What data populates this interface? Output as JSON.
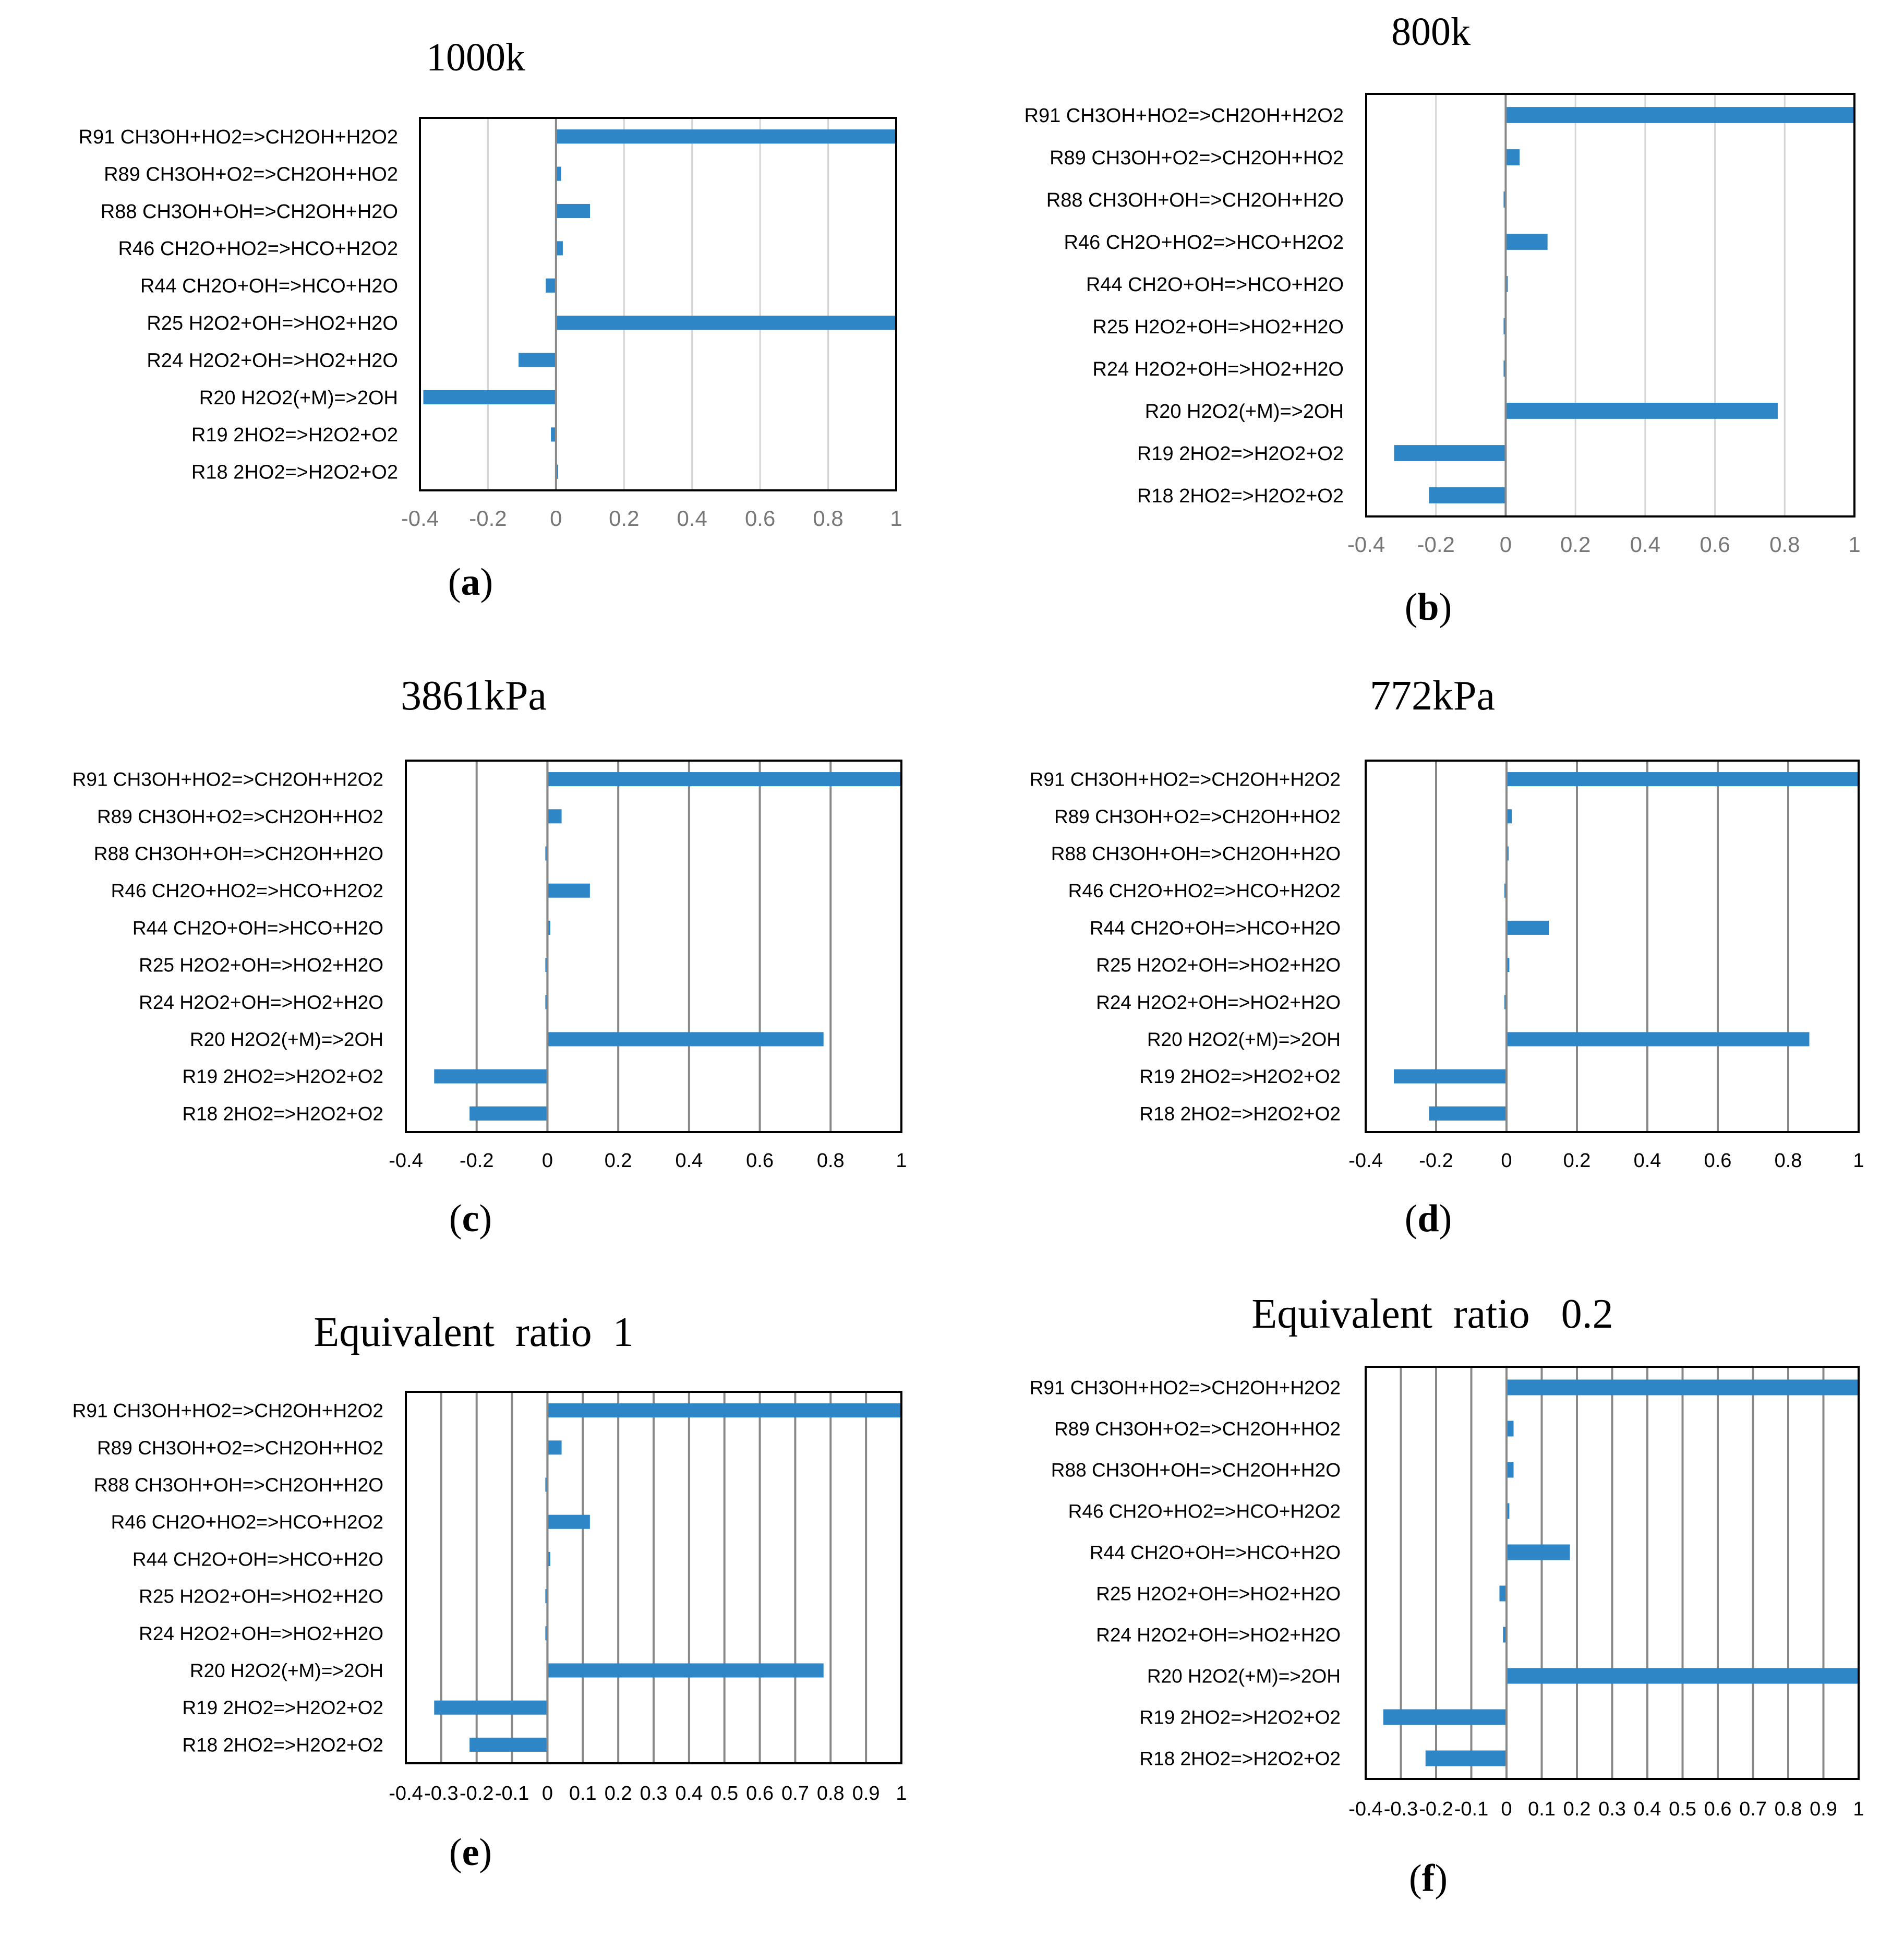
{
  "colors": {
    "bar": "#2e86c7",
    "grid_light": "#d4d4d4",
    "grid_dark": "#888888",
    "frame": "#000000",
    "tick_text": "#777777",
    "label_text": "#000000"
  },
  "chart_data": [
    {
      "type": "bar",
      "orientation": "horizontal",
      "panel": "a",
      "title": "1000k",
      "sublabel_letter": "a",
      "categories": [
        "R91 CH3OH+HO2=>CH2OH+H2O2",
        "R89 CH3OH+O2=>CH2OH+HO2",
        "R88 CH3OH+OH=>CH2OH+H2O",
        "R46 CH2O+HO2=>HCO+H2O2",
        "R44 CH2O+OH=>HCO+H2O",
        "R25 H2O2+OH=>HO2+H2O",
        "R24 H2O2+OH=>HO2+H2O",
        "R20 H2O2(+M)=>2OH",
        "R19 2HO2=>H2O2+O2",
        "R18 2HO2=>H2O2+O2"
      ],
      "values": [
        1.0,
        0.015,
        0.1,
        0.02,
        -0.03,
        1.0,
        -0.11,
        -0.39,
        -0.015,
        0.005
      ],
      "xlim": [
        -0.4,
        1
      ],
      "xticks": [
        "-0.4",
        "-0.2",
        "0",
        "0.2",
        "0.4",
        "0.6",
        "0.8",
        "1"
      ],
      "xtick_values": [
        -0.4,
        -0.2,
        0,
        0.2,
        0.4,
        0.6,
        0.8,
        1
      ]
    },
    {
      "type": "bar",
      "orientation": "horizontal",
      "panel": "b",
      "title": "800k",
      "sublabel_letter": "b",
      "categories": [
        "R91 CH3OH+HO2=>CH2OH+H2O2",
        "R89 CH3OH+O2=>CH2OH+HO2",
        "R88 CH3OH+OH=>CH2OH+H2O",
        "R46 CH2O+HO2=>HCO+H2O2",
        "R44 CH2O+OH=>HCO+H2O",
        "R25 H2O2+OH=>HO2+H2O",
        "R24 H2O2+OH=>HO2+H2O",
        "R20 H2O2(+M)=>2OH",
        "R19 2HO2=>H2O2+O2",
        "R18 2HO2=>H2O2+O2"
      ],
      "values": [
        1.0,
        0.04,
        -0.005,
        0.12,
        0.005,
        -0.005,
        -0.005,
        0.78,
        -0.32,
        -0.22
      ],
      "xlim": [
        -0.4,
        1
      ],
      "xticks": [
        "-0.4",
        "-0.2",
        "0",
        "0.2",
        "0.4",
        "0.6",
        "0.8",
        "1"
      ],
      "xtick_values": [
        -0.4,
        -0.2,
        0,
        0.2,
        0.4,
        0.6,
        0.8,
        1
      ]
    },
    {
      "type": "bar",
      "orientation": "horizontal",
      "panel": "c",
      "title": "3861kPa",
      "sublabel_letter": "c",
      "categories": [
        "R91 CH3OH+HO2=>CH2OH+H2O2",
        "R89 CH3OH+O2=>CH2OH+HO2",
        "R88 CH3OH+OH=>CH2OH+H2O",
        "R46 CH2O+HO2=>HCO+H2O2",
        "R44 CH2O+OH=>HCO+H2O",
        "R25 H2O2+OH=>HO2+H2O",
        "R24 H2O2+OH=>HO2+H2O",
        "R20 H2O2(+M)=>2OH",
        "R19 2HO2=>H2O2+O2",
        "R18 2HO2=>H2O2+O2"
      ],
      "values": [
        1.0,
        0.04,
        -0.005,
        0.12,
        0.008,
        -0.005,
        -0.005,
        0.78,
        -0.32,
        -0.22
      ],
      "xlim": [
        -0.4,
        1
      ],
      "xticks": [
        "-0.4",
        "-0.2",
        "0",
        "0.2",
        "0.4",
        "0.6",
        "0.8",
        "1"
      ],
      "xtick_values": [
        -0.4,
        -0.2,
        0,
        0.2,
        0.4,
        0.6,
        0.8,
        1
      ]
    },
    {
      "type": "bar",
      "orientation": "horizontal",
      "panel": "d",
      "title": "772kPa",
      "sublabel_letter": "d",
      "categories": [
        "R91 CH3OH+HO2=>CH2OH+H2O2",
        "R89 CH3OH+O2=>CH2OH+HO2",
        "R88 CH3OH+OH=>CH2OH+H2O",
        "R46 CH2O+HO2=>HCO+H2O2",
        "R44 CH2O+OH=>HCO+H2O",
        "R25 H2O2+OH=>HO2+H2O",
        "R24 H2O2+OH=>HO2+H2O",
        "R20 H2O2(+M)=>2OH",
        "R19 2HO2=>H2O2+O2",
        "R18 2HO2=>H2O2+O2"
      ],
      "values": [
        1.0,
        0.015,
        0,
        -0.005,
        0.12,
        0.008,
        -0.005,
        0.86,
        -0.32,
        -0.22
      ],
      "xlim": [
        -0.4,
        1
      ],
      "xticks": [
        "-0.4",
        "-0.2",
        "0",
        "0.2",
        "0.4",
        "0.6",
        "0.8",
        "1"
      ],
      "xtick_values": [
        -0.4,
        -0.2,
        0,
        0.2,
        0.4,
        0.6,
        0.8,
        1
      ]
    },
    {
      "type": "bar",
      "orientation": "horizontal",
      "panel": "e",
      "title": "Equivalent  ratio  1",
      "sublabel_letter": "e",
      "categories": [
        "R91 CH3OH+HO2=>CH2OH+H2O2",
        "R89 CH3OH+O2=>CH2OH+HO2",
        "R88 CH3OH+OH=>CH2OH+H2O",
        "R46 CH2O+HO2=>HCO+H2O2",
        "R44 CH2O+OH=>HCO+H2O",
        "R25 H2O2+OH=>HO2+H2O",
        "R24 H2O2+OH=>HO2+H2O",
        "R20 H2O2(+M)=>2OH",
        "R19 2HO2=>H2O2+O2",
        "R18 2HO2=>H2O2+O2"
      ],
      "values": [
        1.0,
        0.04,
        -0.005,
        0.12,
        0.008,
        -0.005,
        -0.005,
        0.78,
        -0.32,
        -0.22
      ],
      "xlim": [
        -0.4,
        1
      ],
      "xticks": [
        "-0.4",
        "-0.3",
        "-0.2",
        "-0.1",
        "0",
        "0.1",
        "0.2",
        "0.3",
        "0.4",
        "0.5",
        "0.6",
        "0.7",
        "0.8",
        "0.9",
        "1"
      ],
      "xtick_values": [
        -0.4,
        -0.3,
        -0.2,
        -0.1,
        0,
        0.1,
        0.2,
        0.3,
        0.4,
        0.5,
        0.6,
        0.7,
        0.8,
        0.9,
        1
      ]
    },
    {
      "type": "bar",
      "orientation": "horizontal",
      "panel": "f",
      "title": "Equivalent  ratio   0.2",
      "sublabel_letter": "f",
      "categories": [
        "R91 CH3OH+HO2=>CH2OH+H2O2",
        "R89 CH3OH+O2=>CH2OH+HO2",
        "R88 CH3OH+OH=>CH2OH+H2O",
        "R46 CH2O+HO2=>HCO+H2O2",
        "R44 CH2O+OH=>HCO+H2O",
        "R25 H2O2+OH=>HO2+H2O",
        "R24 H2O2+OH=>HO2+H2O",
        "R20 H2O2(+M)=>2OH",
        "R19 2HO2=>H2O2+O2",
        "R18 2HO2=>H2O2+O2"
      ],
      "values": [
        1.0,
        0.02,
        0.02,
        0.008,
        0.18,
        -0.02,
        -0.01,
        1.0,
        -0.35,
        -0.23
      ],
      "xlim": [
        -0.4,
        1
      ],
      "xticks": [
        "-0.4",
        "-0.3",
        "-0.2",
        "-0.1",
        "0",
        "0.1",
        "0.2",
        "0.3",
        "0.4",
        "0.5",
        "0.6",
        "0.7",
        "0.8",
        "0.9",
        "1"
      ],
      "xtick_values": [
        -0.4,
        -0.3,
        -0.2,
        -0.1,
        0,
        0.1,
        0.2,
        0.3,
        0.4,
        0.5,
        0.6,
        0.7,
        0.8,
        0.9,
        1
      ]
    }
  ]
}
